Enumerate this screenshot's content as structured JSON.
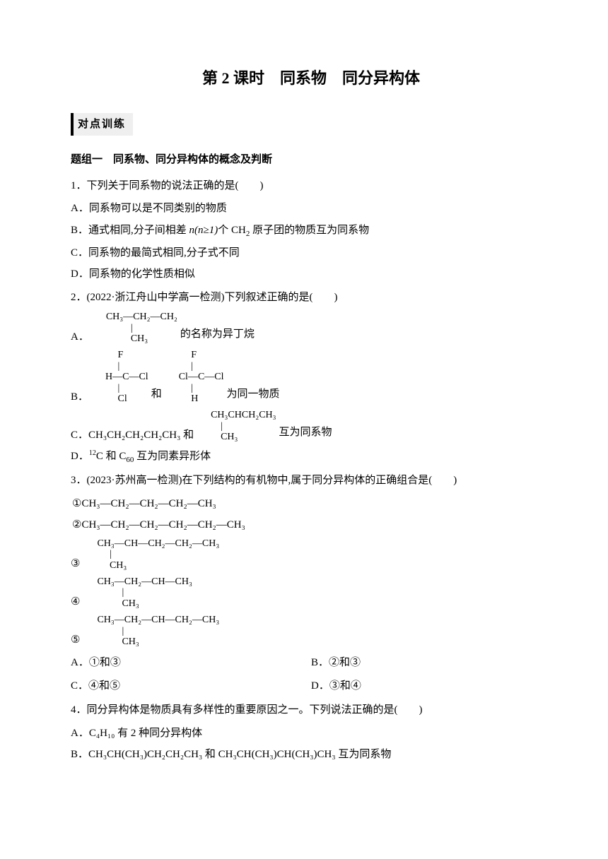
{
  "title": "第 2 课时　同系物　同分异构体",
  "sectionLabel": "对点训练",
  "group1": {
    "title": "题组一　同系物、同分异构体的概念及判断",
    "q1": {
      "stem": "1．下列关于同系物的说法正确的是(　　)",
      "A": "A．同系物可以是不同类别的物质",
      "B_pre": "B．通式相同,分子间相差 ",
      "B_mid": "n(n≥1)",
      "B_post": "个 CH",
      "B_post2": " 原子团的物质互为同系物",
      "C": "C．同系物的最简式相同,分子式不同",
      "D": "D．同系物的化学性质相似"
    },
    "q2": {
      "stem": "2．(2022·浙江舟山中学高一检测)下列叙述正确的是(　　)",
      "A_letter": "A．",
      "A_struct": "CH₃—CH₂—CH₂\n          |\n          CH₃",
      "A_tail": " 的名称为异丁烷",
      "B_letter": "B．",
      "B_struct1": "     F\n     |\nH—C—Cl\n     |\n     Cl",
      "B_mid": "和",
      "B_struct2": "     F\n     |\nCl—C—Cl\n     |\n     H",
      "B_tail": "为同一物质",
      "C_pre": "C．CH₃CH₂CH₂CH₂CH₃ 和",
      "C_struct": "CH₃CHCH₂CH₃\n    |\n    CH₃",
      "C_tail": "互为同系物",
      "D_pre": "D．",
      "D_sup": "12",
      "D_mid": "C 和 C",
      "D_sub": "60",
      "D_tail": " 互为同素异形体"
    },
    "q3": {
      "stem": "3．(2023·苏州高一检测)在下列结构的有机物中,属于同分异构体的正确组合是(　　)",
      "l1": "①CH₃—CH₂—CH₂—CH₂—CH₃",
      "l2": "②CH₃—CH₂—CH₂—CH₂—CH₂—CH₃",
      "l3_num": "③",
      "l3_struct": "CH₃—CH—CH₂—CH₂—CH₃\n     |\n     CH₃",
      "l4_num": "④",
      "l4_struct": "CH₃—CH₂—CH—CH₃\n          |\n          CH₃",
      "l5_num": "⑤",
      "l5_struct": "CH₃—CH₂—CH—CH₂—CH₃\n          |\n          CH₃",
      "A": "A．①和③",
      "B": "B．②和③",
      "C": "C．④和⑤",
      "D": "D．③和④"
    },
    "q4": {
      "stem": "4．同分异构体是物质具有多样性的重要原因之一。下列说法正确的是(　　)",
      "A": "A．C₄H₁₀ 有 2 种同分异构体",
      "B": "B．CH₃CH(CH₃)CH₂CH₂CH₃ 和 CH₃CH(CH₃)CH(CH₃)CH₃ 互为同系物"
    }
  }
}
